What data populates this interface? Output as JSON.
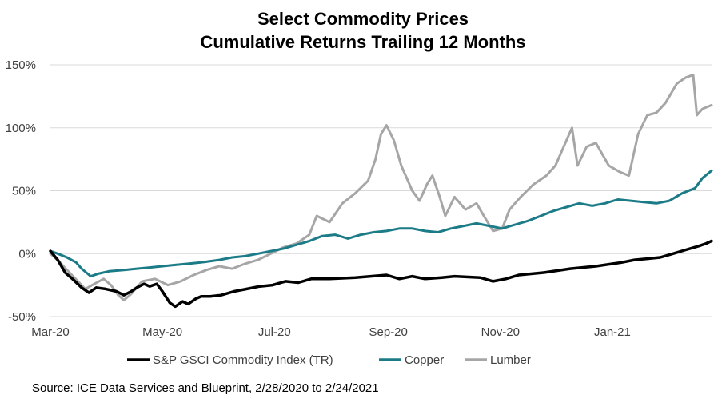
{
  "chart_data": {
    "type": "line",
    "title_line1": "Select Commodity Prices",
    "title_line2": "Cumulative Returns Trailing 12 Months",
    "y_ticks": [
      "150%",
      "100%",
      "50%",
      "0%",
      "-50%"
    ],
    "y_tick_values": [
      150,
      100,
      50,
      0,
      -50
    ],
    "ylim": [
      -50,
      150
    ],
    "x_ticks": [
      "Mar-20",
      "May-20",
      "Jul-20",
      "Sep-20",
      "Nov-20",
      "Jan-21"
    ],
    "x_tick_dates": [
      "2020-03-01",
      "2020-05-01",
      "2020-07-01",
      "2020-09-01",
      "2020-11-01",
      "2021-01-01"
    ],
    "xlim": [
      "2020-03-01",
      "2021-02-24"
    ],
    "grid": "horizontal",
    "legend_position": "bottom",
    "series": [
      {
        "name": "S&P GSCI Commodity Index (TR)",
        "color": "#000000",
        "points": [
          [
            "2020-03-01",
            2
          ],
          [
            "2020-03-05",
            -5
          ],
          [
            "2020-03-09",
            -15
          ],
          [
            "2020-03-13",
            -20
          ],
          [
            "2020-03-18",
            -27
          ],
          [
            "2020-03-22",
            -31
          ],
          [
            "2020-03-26",
            -27
          ],
          [
            "2020-03-31",
            -28
          ],
          [
            "2020-04-06",
            -30
          ],
          [
            "2020-04-10",
            -33
          ],
          [
            "2020-04-14",
            -30
          ],
          [
            "2020-04-17",
            -27
          ],
          [
            "2020-04-21",
            -24
          ],
          [
            "2020-04-24",
            -26
          ],
          [
            "2020-04-28",
            -24
          ],
          [
            "2020-05-01",
            -30
          ],
          [
            "2020-05-05",
            -39
          ],
          [
            "2020-05-08",
            -42
          ],
          [
            "2020-05-12",
            -38
          ],
          [
            "2020-05-15",
            -40
          ],
          [
            "2020-05-19",
            -36
          ],
          [
            "2020-05-22",
            -34
          ],
          [
            "2020-05-27",
            -34
          ],
          [
            "2020-06-02",
            -33
          ],
          [
            "2020-06-09",
            -30
          ],
          [
            "2020-06-16",
            -28
          ],
          [
            "2020-06-23",
            -26
          ],
          [
            "2020-06-30",
            -25
          ],
          [
            "2020-07-07",
            -22
          ],
          [
            "2020-07-14",
            -23
          ],
          [
            "2020-07-21",
            -20
          ],
          [
            "2020-07-31",
            -20
          ],
          [
            "2020-08-14",
            -19
          ],
          [
            "2020-08-31",
            -17
          ],
          [
            "2020-09-07",
            -20
          ],
          [
            "2020-09-14",
            -18
          ],
          [
            "2020-09-21",
            -20
          ],
          [
            "2020-09-30",
            -19
          ],
          [
            "2020-10-07",
            -18
          ],
          [
            "2020-10-21",
            -19
          ],
          [
            "2020-10-28",
            -22
          ],
          [
            "2020-11-04",
            -20
          ],
          [
            "2020-11-11",
            -17
          ],
          [
            "2020-11-25",
            -15
          ],
          [
            "2020-12-09",
            -12
          ],
          [
            "2020-12-23",
            -10
          ],
          [
            "2021-01-06",
            -7
          ],
          [
            "2021-01-13",
            -5
          ],
          [
            "2021-01-20",
            -4
          ],
          [
            "2021-01-27",
            -3
          ],
          [
            "2021-02-03",
            0
          ],
          [
            "2021-02-10",
            3
          ],
          [
            "2021-02-17",
            6
          ],
          [
            "2021-02-21",
            8
          ],
          [
            "2021-02-24",
            10
          ]
        ]
      },
      {
        "name": "Copper",
        "color": "#1b7b86",
        "points": [
          [
            "2020-03-01",
            2
          ],
          [
            "2020-03-05",
            0
          ],
          [
            "2020-03-10",
            -3
          ],
          [
            "2020-03-15",
            -7
          ],
          [
            "2020-03-18",
            -12
          ],
          [
            "2020-03-23",
            -18
          ],
          [
            "2020-03-27",
            -16
          ],
          [
            "2020-04-02",
            -14
          ],
          [
            "2020-04-10",
            -13
          ],
          [
            "2020-04-17",
            -12
          ],
          [
            "2020-04-24",
            -11
          ],
          [
            "2020-05-01",
            -10
          ],
          [
            "2020-05-08",
            -9
          ],
          [
            "2020-05-15",
            -8
          ],
          [
            "2020-05-22",
            -7
          ],
          [
            "2020-06-01",
            -5
          ],
          [
            "2020-06-08",
            -3
          ],
          [
            "2020-06-15",
            -2
          ],
          [
            "2020-06-22",
            0
          ],
          [
            "2020-06-29",
            2
          ],
          [
            "2020-07-06",
            4
          ],
          [
            "2020-07-13",
            7
          ],
          [
            "2020-07-20",
            10
          ],
          [
            "2020-07-27",
            14
          ],
          [
            "2020-08-03",
            15
          ],
          [
            "2020-08-10",
            12
          ],
          [
            "2020-08-17",
            15
          ],
          [
            "2020-08-24",
            17
          ],
          [
            "2020-08-31",
            18
          ],
          [
            "2020-09-07",
            20
          ],
          [
            "2020-09-14",
            20
          ],
          [
            "2020-09-21",
            18
          ],
          [
            "2020-09-28",
            17
          ],
          [
            "2020-10-05",
            20
          ],
          [
            "2020-10-12",
            22
          ],
          [
            "2020-10-19",
            24
          ],
          [
            "2020-10-26",
            22
          ],
          [
            "2020-11-02",
            20
          ],
          [
            "2020-11-09",
            23
          ],
          [
            "2020-11-16",
            26
          ],
          [
            "2020-11-23",
            30
          ],
          [
            "2020-11-30",
            34
          ],
          [
            "2020-12-07",
            37
          ],
          [
            "2020-12-14",
            40
          ],
          [
            "2020-12-21",
            38
          ],
          [
            "2020-12-28",
            40
          ],
          [
            "2021-01-04",
            43
          ],
          [
            "2021-01-11",
            42
          ],
          [
            "2021-01-18",
            41
          ],
          [
            "2021-01-25",
            40
          ],
          [
            "2021-02-01",
            42
          ],
          [
            "2021-02-08",
            48
          ],
          [
            "2021-02-15",
            52
          ],
          [
            "2021-02-19",
            60
          ],
          [
            "2021-02-24",
            66
          ]
        ]
      },
      {
        "name": "Lumber",
        "color": "#a6a6a6",
        "points": [
          [
            "2020-03-01",
            0
          ],
          [
            "2020-03-05",
            -5
          ],
          [
            "2020-03-10",
            -13
          ],
          [
            "2020-03-16",
            -22
          ],
          [
            "2020-03-20",
            -28
          ],
          [
            "2020-03-25",
            -24
          ],
          [
            "2020-03-30",
            -20
          ],
          [
            "2020-04-03",
            -25
          ],
          [
            "2020-04-07",
            -33
          ],
          [
            "2020-04-10",
            -37
          ],
          [
            "2020-04-14",
            -32
          ],
          [
            "2020-04-20",
            -22
          ],
          [
            "2020-04-27",
            -20
          ],
          [
            "2020-05-04",
            -25
          ],
          [
            "2020-05-11",
            -22
          ],
          [
            "2020-05-18",
            -17
          ],
          [
            "2020-05-25",
            -13
          ],
          [
            "2020-06-01",
            -10
          ],
          [
            "2020-06-08",
            -12
          ],
          [
            "2020-06-15",
            -8
          ],
          [
            "2020-06-22",
            -5
          ],
          [
            "2020-06-29",
            0
          ],
          [
            "2020-07-06",
            5
          ],
          [
            "2020-07-13",
            8
          ],
          [
            "2020-07-20",
            15
          ],
          [
            "2020-07-24",
            30
          ],
          [
            "2020-07-31",
            25
          ],
          [
            "2020-08-07",
            40
          ],
          [
            "2020-08-14",
            48
          ],
          [
            "2020-08-21",
            58
          ],
          [
            "2020-08-25",
            75
          ],
          [
            "2020-08-28",
            95
          ],
          [
            "2020-08-31",
            102
          ],
          [
            "2020-09-04",
            90
          ],
          [
            "2020-09-08",
            70
          ],
          [
            "2020-09-14",
            50
          ],
          [
            "2020-09-18",
            42
          ],
          [
            "2020-09-22",
            55
          ],
          [
            "2020-09-25",
            62
          ],
          [
            "2020-09-29",
            45
          ],
          [
            "2020-10-02",
            30
          ],
          [
            "2020-10-07",
            45
          ],
          [
            "2020-10-13",
            35
          ],
          [
            "2020-10-19",
            40
          ],
          [
            "2020-10-23",
            30
          ],
          [
            "2020-10-28",
            18
          ],
          [
            "2020-11-02",
            20
          ],
          [
            "2020-11-06",
            35
          ],
          [
            "2020-11-12",
            45
          ],
          [
            "2020-11-19",
            55
          ],
          [
            "2020-11-26",
            62
          ],
          [
            "2020-12-01",
            70
          ],
          [
            "2020-12-07",
            90
          ],
          [
            "2020-12-10",
            100
          ],
          [
            "2020-12-13",
            70
          ],
          [
            "2020-12-18",
            85
          ],
          [
            "2020-12-23",
            88
          ],
          [
            "2020-12-30",
            70
          ],
          [
            "2021-01-05",
            65
          ],
          [
            "2021-01-10",
            62
          ],
          [
            "2021-01-15",
            95
          ],
          [
            "2021-01-20",
            110
          ],
          [
            "2021-01-25",
            112
          ],
          [
            "2021-01-30",
            120
          ],
          [
            "2021-02-05",
            135
          ],
          [
            "2021-02-10",
            140
          ],
          [
            "2021-02-14",
            142
          ],
          [
            "2021-02-16",
            110
          ],
          [
            "2021-02-19",
            115
          ],
          [
            "2021-02-24",
            118
          ]
        ]
      }
    ]
  },
  "source_text": "Source: ICE Data Services and Blueprint, 2/28/2020 to 2/24/2021"
}
